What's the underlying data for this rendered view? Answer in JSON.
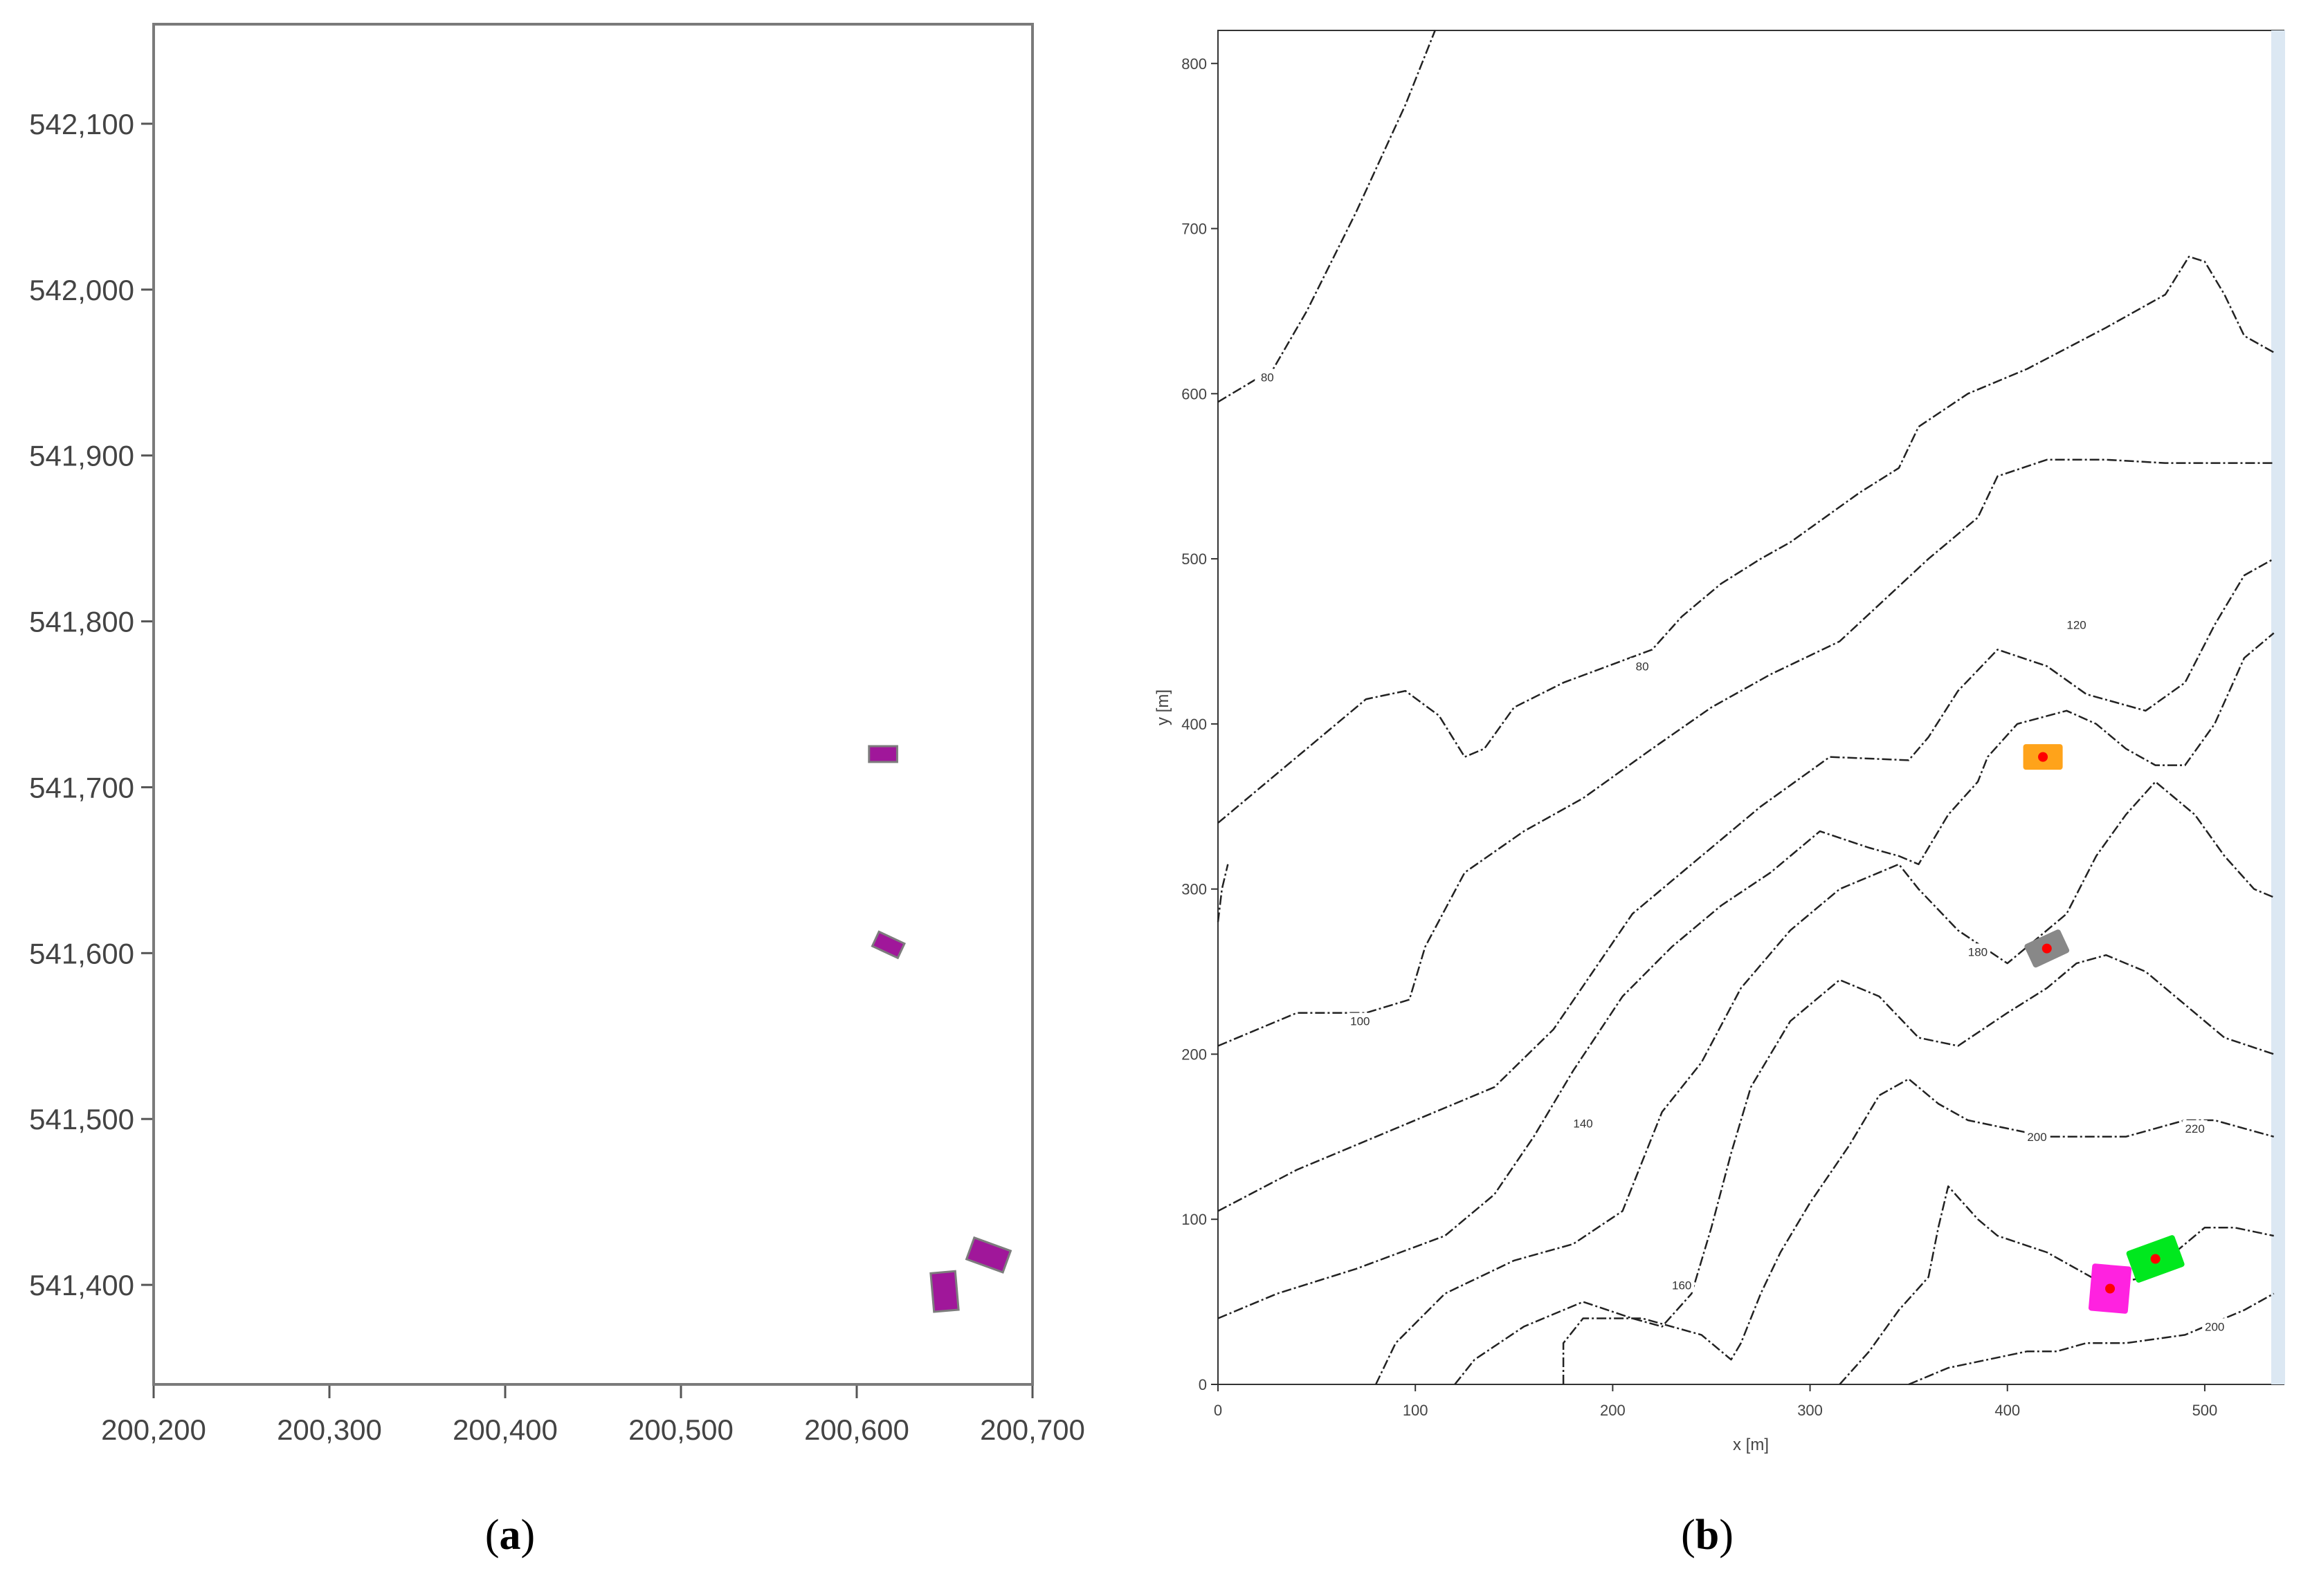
{
  "chart_data": [
    {
      "type": "scatter",
      "panel": "a",
      "yticks": [
        "542,100",
        "542,000",
        "541,900",
        "541,800",
        "541,700",
        "541,600",
        "541,500",
        "541,400"
      ],
      "ytick_values": [
        542100,
        542000,
        541900,
        541800,
        541700,
        541600,
        541500,
        541400
      ],
      "xticks": [
        "200,200",
        "200,300",
        "200,400",
        "200,500",
        "200,600",
        "200,700"
      ],
      "xtick_values": [
        200200,
        200300,
        200400,
        200500,
        200600,
        200700
      ],
      "xlim": [
        200200,
        200700
      ],
      "ylim": [
        541340,
        542160
      ],
      "grid": false,
      "marker_color": "#a0179a",
      "points": [
        {
          "x": 200615,
          "y": 541720,
          "w": 16,
          "h": 9,
          "angle": 0
        },
        {
          "x": 200618,
          "y": 541605,
          "w": 16,
          "h": 9,
          "angle": 25
        },
        {
          "x": 200675,
          "y": 541418,
          "w": 22,
          "h": 13,
          "angle": 20
        },
        {
          "x": 200650,
          "y": 541396,
          "w": 14,
          "h": 22,
          "angle": -5
        }
      ]
    },
    {
      "type": "line",
      "panel": "b",
      "xlabel": "x [m]",
      "ylabel": "y [m]",
      "xticks": [
        "0",
        "100",
        "200",
        "300",
        "400",
        "500"
      ],
      "xtick_values": [
        0,
        100,
        200,
        300,
        400,
        500
      ],
      "yticks": [
        "0",
        "100",
        "200",
        "300",
        "400",
        "500",
        "600",
        "700",
        "800"
      ],
      "ytick_values": [
        0,
        100,
        200,
        300,
        400,
        500,
        600,
        700,
        800
      ],
      "xlim": [
        0,
        540
      ],
      "ylim": [
        0,
        820
      ],
      "grid": false,
      "contour_color": "#222222",
      "contour_labels": [
        {
          "text": "80",
          "x": 25,
          "y": 610
        },
        {
          "text": "80",
          "x": 215,
          "y": 435
        },
        {
          "text": "100",
          "x": 72,
          "y": 220
        },
        {
          "text": "120",
          "x": 435,
          "y": 460
        },
        {
          "text": "140",
          "x": 185,
          "y": 158
        },
        {
          "text": "160",
          "x": 235,
          "y": 60
        },
        {
          "text": "180",
          "x": 385,
          "y": 262
        },
        {
          "text": "200",
          "x": 415,
          "y": 150
        },
        {
          "text": "220",
          "x": 495,
          "y": 155
        },
        {
          "text": "200",
          "x": 505,
          "y": 35
        }
      ],
      "contours": [
        [
          [
            0,
            595
          ],
          [
            28,
            615
          ],
          [
            45,
            650
          ],
          [
            70,
            710
          ],
          [
            95,
            775
          ],
          [
            110,
            820
          ]
        ],
        [
          [
            0,
            340
          ],
          [
            35,
            375
          ],
          [
            75,
            415
          ],
          [
            95,
            420
          ],
          [
            112,
            405
          ],
          [
            125,
            380
          ],
          [
            135,
            385
          ],
          [
            150,
            410
          ],
          [
            175,
            425
          ],
          [
            220,
            445
          ],
          [
            235,
            465
          ],
          [
            255,
            485
          ],
          [
            275,
            500
          ],
          [
            290,
            510
          ],
          [
            325,
            540
          ],
          [
            345,
            555
          ],
          [
            355,
            580
          ],
          [
            380,
            600
          ],
          [
            410,
            615
          ],
          [
            450,
            640
          ],
          [
            480,
            660
          ],
          [
            492,
            683
          ],
          [
            500,
            680
          ],
          [
            510,
            660
          ],
          [
            520,
            635
          ],
          [
            535,
            625
          ]
        ],
        [
          [
            0,
            205
          ],
          [
            40,
            225
          ],
          [
            75,
            225
          ],
          [
            97,
            233
          ],
          [
            105,
            265
          ],
          [
            125,
            310
          ],
          [
            155,
            335
          ],
          [
            185,
            355
          ],
          [
            220,
            385
          ],
          [
            250,
            410
          ],
          [
            280,
            430
          ],
          [
            315,
            450
          ],
          [
            360,
            500
          ],
          [
            385,
            525
          ],
          [
            395,
            550
          ],
          [
            420,
            560
          ],
          [
            450,
            560
          ],
          [
            480,
            558
          ],
          [
            535,
            558
          ]
        ],
        [
          [
            0,
            105
          ],
          [
            40,
            130
          ],
          [
            90,
            155
          ],
          [
            140,
            180
          ],
          [
            170,
            215
          ],
          [
            190,
            250
          ],
          [
            210,
            285
          ],
          [
            245,
            320
          ],
          [
            275,
            350
          ],
          [
            310,
            380
          ],
          [
            350,
            378
          ],
          [
            360,
            392
          ],
          [
            375,
            420
          ],
          [
            395,
            445
          ],
          [
            420,
            435
          ],
          [
            440,
            418
          ],
          [
            470,
            408
          ],
          [
            490,
            425
          ],
          [
            505,
            460
          ],
          [
            520,
            490
          ],
          [
            535,
            500
          ]
        ],
        [
          [
            0,
            40
          ],
          [
            30,
            55
          ],
          [
            70,
            70
          ],
          [
            115,
            90
          ],
          [
            140,
            115
          ],
          [
            160,
            150
          ],
          [
            180,
            190
          ],
          [
            205,
            235
          ],
          [
            230,
            265
          ],
          [
            255,
            290
          ],
          [
            280,
            310
          ],
          [
            305,
            335
          ],
          [
            330,
            325
          ],
          [
            345,
            320
          ],
          [
            355,
            315
          ],
          [
            370,
            345
          ],
          [
            385,
            365
          ],
          [
            390,
            380
          ],
          [
            405,
            400
          ],
          [
            430,
            408
          ],
          [
            445,
            400
          ],
          [
            460,
            385
          ],
          [
            475,
            375
          ],
          [
            490,
            375
          ],
          [
            505,
            400
          ],
          [
            520,
            440
          ],
          [
            535,
            455
          ]
        ],
        [
          [
            80,
            0
          ],
          [
            90,
            25
          ],
          [
            115,
            55
          ],
          [
            150,
            75
          ],
          [
            180,
            85
          ],
          [
            205,
            105
          ],
          [
            215,
            135
          ],
          [
            225,
            165
          ],
          [
            245,
            195
          ],
          [
            265,
            240
          ],
          [
            290,
            275
          ],
          [
            315,
            300
          ],
          [
            345,
            315
          ],
          [
            355,
            300
          ],
          [
            375,
            275
          ],
          [
            400,
            255
          ],
          [
            430,
            285
          ],
          [
            445,
            320
          ],
          [
            460,
            345
          ],
          [
            475,
            365
          ],
          [
            495,
            345
          ],
          [
            510,
            320
          ],
          [
            525,
            300
          ],
          [
            535,
            295
          ]
        ],
        [
          [
            120,
            0
          ],
          [
            130,
            15
          ],
          [
            155,
            35
          ],
          [
            185,
            50
          ],
          [
            210,
            40
          ],
          [
            225,
            35
          ],
          [
            240,
            55
          ],
          [
            250,
            95
          ],
          [
            260,
            140
          ],
          [
            270,
            180
          ],
          [
            290,
            220
          ],
          [
            315,
            245
          ],
          [
            335,
            235
          ],
          [
            355,
            210
          ],
          [
            375,
            205
          ],
          [
            400,
            225
          ],
          [
            420,
            240
          ],
          [
            435,
            255
          ],
          [
            450,
            260
          ],
          [
            470,
            250
          ],
          [
            490,
            230
          ],
          [
            510,
            210
          ],
          [
            535,
            200
          ]
        ],
        [
          [
            175,
            0
          ],
          [
            175,
            25
          ],
          [
            185,
            40
          ],
          [
            215,
            40
          ],
          [
            245,
            30
          ],
          [
            260,
            15
          ],
          [
            265,
            25
          ],
          [
            275,
            55
          ],
          [
            285,
            80
          ],
          [
            300,
            110
          ],
          [
            320,
            145
          ],
          [
            335,
            175
          ],
          [
            350,
            185
          ],
          [
            365,
            170
          ],
          [
            380,
            160
          ],
          [
            400,
            155
          ],
          [
            420,
            150
          ],
          [
            440,
            150
          ],
          [
            460,
            150
          ],
          [
            475,
            155
          ],
          [
            490,
            160
          ],
          [
            505,
            160
          ],
          [
            520,
            155
          ],
          [
            535,
            150
          ]
        ],
        [
          [
            315,
            0
          ],
          [
            330,
            20
          ],
          [
            345,
            45
          ],
          [
            360,
            65
          ],
          [
            365,
            95
          ],
          [
            370,
            120
          ],
          [
            385,
            100
          ],
          [
            395,
            90
          ],
          [
            420,
            80
          ],
          [
            450,
            60
          ],
          [
            470,
            65
          ],
          [
            485,
            80
          ],
          [
            500,
            95
          ],
          [
            515,
            95
          ],
          [
            535,
            90
          ]
        ],
        [
          [
            350,
            0
          ],
          [
            370,
            10
          ],
          [
            390,
            15
          ],
          [
            410,
            20
          ],
          [
            425,
            20
          ],
          [
            440,
            25
          ],
          [
            460,
            25
          ],
          [
            490,
            30
          ],
          [
            510,
            40
          ],
          [
            520,
            45
          ],
          [
            535,
            55
          ]
        ],
        [
          [
            0,
            280
          ],
          [
            2,
            300
          ],
          [
            5,
            315
          ]
        ]
      ],
      "structures": [
        {
          "x": 418,
          "y": 380,
          "w": 20,
          "h": 13,
          "angle": 0,
          "color": "#ffa31a"
        },
        {
          "x": 420,
          "y": 264,
          "w": 20,
          "h": 13,
          "angle": 25,
          "color": "#888888"
        },
        {
          "x": 475,
          "y": 76,
          "w": 26,
          "h": 17,
          "angle": 20,
          "color": "#00e81e"
        },
        {
          "x": 452,
          "y": 58,
          "w": 20,
          "h": 24,
          "angle": -5,
          "color": "#ff22e0"
        }
      ],
      "source_marker_color": "#ff0000"
    }
  ],
  "captions": {
    "a": "a",
    "b": "b"
  }
}
